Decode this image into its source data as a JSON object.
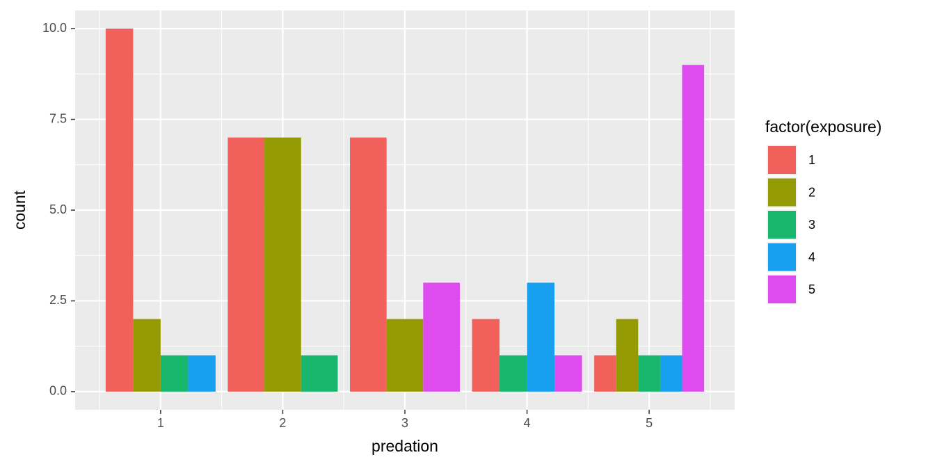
{
  "chart_data": {
    "type": "bar",
    "x": [
      1,
      2,
      3,
      4,
      5
    ],
    "xlabel": "predation",
    "ylabel": "count",
    "legend_title": "factor(exposure)",
    "legend": "right",
    "xlim": [
      0.3,
      5.7
    ],
    "xticks": [
      1,
      2,
      3,
      4,
      5
    ],
    "ylim": [
      -0.5,
      10.5
    ],
    "yticks": [
      {
        "value": 0,
        "label": "0.0"
      },
      2.5,
      {
        "value": 5,
        "label": "5.0"
      },
      7.5,
      {
        "value": 10,
        "label": "10.0"
      }
    ],
    "grid": true,
    "series": [
      {
        "name": "1",
        "color": "#f2605b",
        "values": [
          10,
          7,
          7,
          2,
          1
        ]
      },
      {
        "name": "2",
        "color": "#949a03",
        "values": [
          2,
          7,
          2,
          null,
          2
        ]
      },
      {
        "name": "3",
        "color": "#19b66d",
        "values": [
          1,
          1,
          null,
          1,
          1
        ]
      },
      {
        "name": "4",
        "color": "#17a0ef",
        "values": [
          1,
          null,
          null,
          3,
          1
        ]
      },
      {
        "name": "5",
        "color": "#de4cef",
        "values": [
          null,
          null,
          3,
          1,
          9
        ]
      }
    ]
  }
}
